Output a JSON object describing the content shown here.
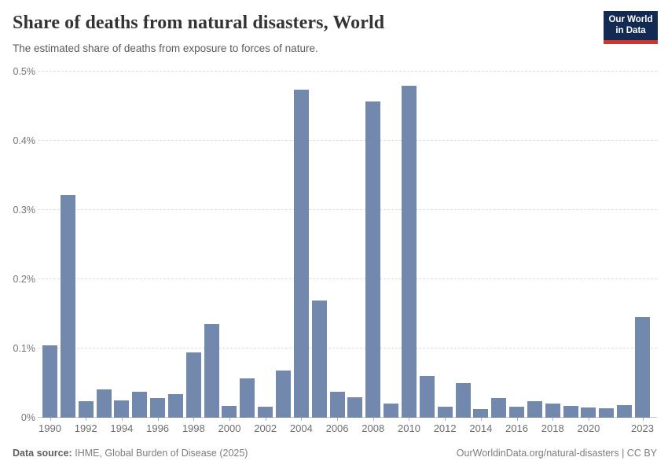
{
  "header": {
    "title": "Share of deaths from natural disasters, World",
    "subtitle": "The estimated share of deaths from exposure to forces of nature.",
    "logo": {
      "line1": "Our World",
      "line2": "in Data"
    }
  },
  "chart_data": {
    "type": "bar",
    "title": "Share of deaths from natural disasters, World",
    "subtitle": "The estimated share of deaths from exposure to forces of nature.",
    "unit": "%",
    "x": [
      1990,
      1991,
      1992,
      1993,
      1994,
      1995,
      1996,
      1997,
      1998,
      1999,
      2000,
      2001,
      2002,
      2003,
      2004,
      2005,
      2006,
      2007,
      2008,
      2009,
      2010,
      2011,
      2012,
      2013,
      2014,
      2015,
      2016,
      2017,
      2018,
      2019,
      2020,
      2021,
      2022,
      2023
    ],
    "values": [
      0.104,
      0.322,
      0.024,
      0.041,
      0.025,
      0.037,
      0.028,
      0.034,
      0.094,
      0.135,
      0.017,
      0.057,
      0.016,
      0.068,
      0.474,
      0.169,
      0.038,
      0.03,
      0.457,
      0.02,
      0.48,
      0.06,
      0.016,
      0.05,
      0.012,
      0.028,
      0.016,
      0.024,
      0.02,
      0.017,
      0.015,
      0.014,
      0.018,
      0.146
    ],
    "ylim": [
      0,
      0.5
    ],
    "y_tick_values": [
      0,
      0.1,
      0.2,
      0.3,
      0.4,
      0.5
    ],
    "y_tick_labels": [
      "0%",
      "0.1%",
      "0.2%",
      "0.3%",
      "0.4%",
      "0.5%"
    ],
    "x_tick_labels": [
      1990,
      1992,
      1994,
      1996,
      1998,
      2000,
      2002,
      2004,
      2006,
      2008,
      2010,
      2012,
      2014,
      2016,
      2018,
      2020,
      2023
    ],
    "grid": "horizontal-dashed",
    "legend": "none",
    "bar_color": "#7288ad"
  },
  "footer": {
    "source_label": "Data source:",
    "source_text": "IHME, Global Burden of Disease (2025)",
    "right_text": "OurWorldinData.org/natural-disasters | CC BY"
  }
}
